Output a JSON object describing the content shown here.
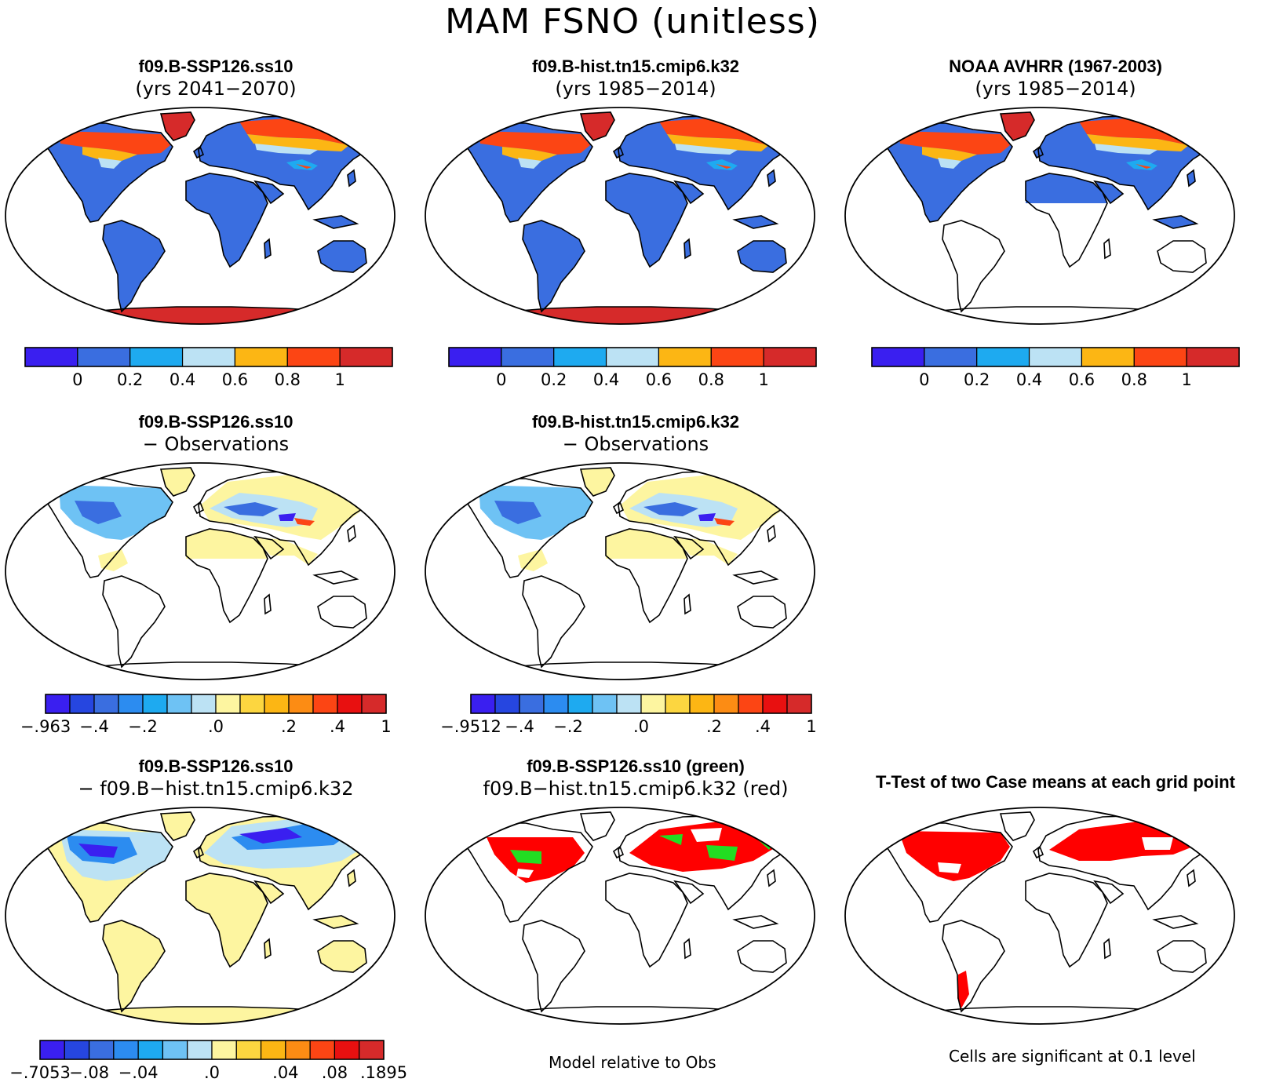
{
  "figure": {
    "title": "MAM FSNO (unitless)",
    "note_center": "Model relative to Obs",
    "note_right": "Cells are significant at 0.1 level"
  },
  "panels": [
    {
      "id": "p1",
      "title1": "f09.B-SSP126.ss10",
      "title2": "(yrs 2041−2070)",
      "kind": "climo",
      "ocean_blank": false,
      "antarctica": "#d62a2a",
      "africa_blank": false
    },
    {
      "id": "p2",
      "title1": "f09.B-hist.tn15.cmip6.k32",
      "title2": "(yrs 1985−2014)",
      "kind": "climo",
      "ocean_blank": false,
      "antarctica": "#d62a2a",
      "africa_blank": false
    },
    {
      "id": "p3",
      "title1": "NOAA AVHRR (1967-2003)",
      "title2": "(yrs 1985−2014)",
      "kind": "climo",
      "ocean_blank": false,
      "antarctica": null,
      "africa_blank": true
    },
    {
      "id": "p4",
      "title1": "f09.B-SSP126.ss10",
      "title2": "− Observations",
      "kind": "bias"
    },
    {
      "id": "p5",
      "title1": "f09.B-hist.tn15.cmip6.k32",
      "title2": "− Observations",
      "kind": "bias"
    },
    {
      "id": "p7",
      "title1": "f09.B-SSP126.ss10",
      "title2": "− f09.B−hist.tn15.cmip6.k32",
      "kind": "diff"
    },
    {
      "id": "p8",
      "title1": "f09.B-SSP126.ss10 (green)",
      "title2": "f09.B−hist.tn15.cmip6.k32 (red)",
      "kind": "compare"
    },
    {
      "id": "p9",
      "title1": "T-Test of two Case means at each grid point",
      "title2": "",
      "kind": "ttest"
    }
  ],
  "colorbars": {
    "climo": {
      "colors": [
        "#3a1ff0",
        "#3a6ee0",
        "#1eaaf0",
        "#bce2f4",
        "#fcb614",
        "#fc4514",
        "#d62a2a"
      ],
      "labels": [
        "0",
        "0.2",
        "0.4",
        "0.6",
        "0.8",
        "1"
      ]
    },
    "bias_p4": {
      "colors": [
        "#3a1ff0",
        "#2646e0",
        "#3a6ee0",
        "#2c8cf0",
        "#1eaaf0",
        "#6ec2f4",
        "#bce2f4",
        "#fdf5a0",
        "#fcd640",
        "#fcb614",
        "#fc8c14",
        "#fc4514",
        "#e81010",
        "#d62a2a"
      ],
      "labels": [
        "−.963",
        "−.4",
        "−.2",
        ".0",
        ".2",
        ".4",
        "1"
      ]
    },
    "bias_p5": {
      "colors": [
        "#3a1ff0",
        "#2646e0",
        "#3a6ee0",
        "#2c8cf0",
        "#1eaaf0",
        "#6ec2f4",
        "#bce2f4",
        "#fdf5a0",
        "#fcd640",
        "#fcb614",
        "#fc8c14",
        "#fc4514",
        "#e81010",
        "#d62a2a"
      ],
      "labels": [
        "−.9512",
        "−.4",
        "−.2",
        ".0",
        ".2",
        ".4",
        "1"
      ]
    },
    "diff": {
      "colors": [
        "#3a1ff0",
        "#2646e0",
        "#3a6ee0",
        "#2c8cf0",
        "#1eaaf0",
        "#6ec2f4",
        "#bce2f4",
        "#fdf5a0",
        "#fcd640",
        "#fcb614",
        "#fc8c14",
        "#fc4514",
        "#e81010",
        "#d62a2a"
      ],
      "labels": [
        "−.7053",
        "−.08",
        "−.04",
        ".0",
        ".04",
        ".08",
        ".1895"
      ]
    }
  }
}
